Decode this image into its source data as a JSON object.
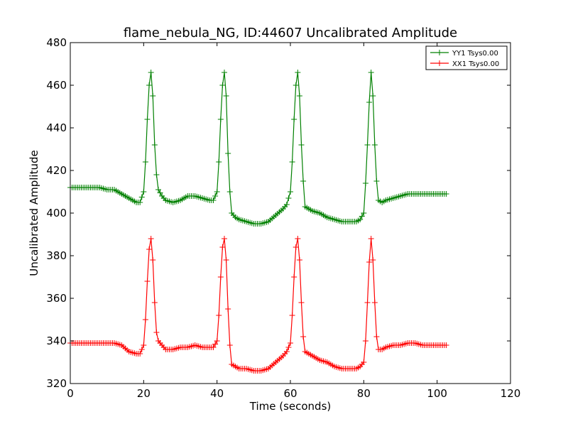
{
  "chart_data": {
    "type": "line",
    "title": "flame_nebula_NG, ID:44607 Uncalibrated Amplitude",
    "xlabel": "Time (seconds)",
    "ylabel": "Uncalibrated Amplitude",
    "xlim": [
      0,
      120
    ],
    "ylim": [
      320,
      480
    ],
    "xticks": [
      "0",
      "20",
      "40",
      "60",
      "80",
      "100",
      "120"
    ],
    "yticks": [
      "320",
      "340",
      "360",
      "380",
      "400",
      "420",
      "440",
      "460",
      "480"
    ],
    "grid": false,
    "legend_position": "top-right",
    "marker": "+",
    "series": [
      {
        "name": "YY1 Tsys0.00",
        "color": "#008000",
        "x": [
          0,
          2,
          4,
          6,
          8,
          10,
          12,
          14,
          16,
          18,
          19,
          20,
          20.5,
          21,
          21.5,
          22,
          22.5,
          23,
          23.5,
          24,
          25,
          26,
          28,
          30,
          32,
          34,
          36,
          38,
          39,
          40,
          40.5,
          41,
          41.5,
          42,
          42.5,
          43,
          43.5,
          44,
          45,
          46,
          48,
          50,
          52,
          54,
          56,
          58,
          59,
          60,
          60.5,
          61,
          61.5,
          62,
          62.5,
          63,
          63.5,
          64,
          65,
          66,
          68,
          70,
          72,
          74,
          76,
          78,
          79,
          80,
          80.5,
          81,
          81.5,
          82,
          82.5,
          83,
          83.5,
          84,
          85,
          86,
          88,
          90,
          92,
          94,
          96,
          98,
          100,
          102.5
        ],
        "y": [
          412,
          412,
          412,
          412,
          412,
          411,
          411,
          409,
          407,
          405,
          405,
          410,
          424,
          444,
          460,
          466,
          455,
          432,
          418,
          411,
          408,
          406,
          405,
          406,
          408,
          408,
          407,
          406,
          406,
          410,
          424,
          444,
          460,
          466,
          455,
          428,
          410,
          400,
          398,
          397,
          396,
          395,
          395,
          396,
          399,
          402,
          404,
          410,
          424,
          444,
          460,
          466,
          455,
          432,
          415,
          403,
          402,
          401,
          400,
          398,
          397,
          396,
          396,
          396,
          397,
          400,
          414,
          432,
          452,
          466,
          455,
          432,
          415,
          406,
          405,
          406,
          407,
          408,
          409,
          409,
          409,
          409,
          409,
          409
        ]
      },
      {
        "name": "XX1 Tsys0.00",
        "color": "#ff0000",
        "x": [
          0,
          2,
          4,
          6,
          8,
          10,
          12,
          14,
          16,
          18,
          19,
          20,
          20.5,
          21,
          21.5,
          22,
          22.5,
          23,
          23.5,
          24,
          25,
          26,
          28,
          30,
          32,
          34,
          36,
          38,
          39,
          40,
          40.5,
          41,
          41.5,
          42,
          42.5,
          43,
          43.5,
          44,
          45,
          46,
          48,
          50,
          52,
          54,
          56,
          58,
          59,
          60,
          60.5,
          61,
          61.5,
          62,
          62.5,
          63,
          63.5,
          64,
          65,
          66,
          68,
          70,
          72,
          74,
          76,
          78,
          79,
          80,
          80.5,
          81,
          81.5,
          82,
          82.5,
          83,
          83.5,
          84,
          85,
          86,
          88,
          90,
          92,
          94,
          96,
          98,
          100,
          102.5
        ],
        "y": [
          339,
          339,
          339,
          339,
          339,
          339,
          339,
          338,
          335,
          334,
          334,
          338,
          350,
          368,
          383,
          388,
          378,
          358,
          344,
          340,
          338,
          336,
          336,
          337,
          337,
          338,
          337,
          337,
          337,
          340,
          352,
          370,
          384,
          388,
          378,
          355,
          338,
          329,
          328,
          327,
          327,
          326,
          326,
          327,
          330,
          333,
          335,
          339,
          352,
          370,
          384,
          388,
          378,
          358,
          342,
          335,
          334,
          333,
          331,
          330,
          328,
          327,
          327,
          327,
          328,
          330,
          340,
          358,
          377,
          388,
          378,
          358,
          342,
          336,
          336,
          337,
          338,
          338,
          339,
          339,
          338,
          338,
          338,
          338
        ]
      }
    ]
  }
}
